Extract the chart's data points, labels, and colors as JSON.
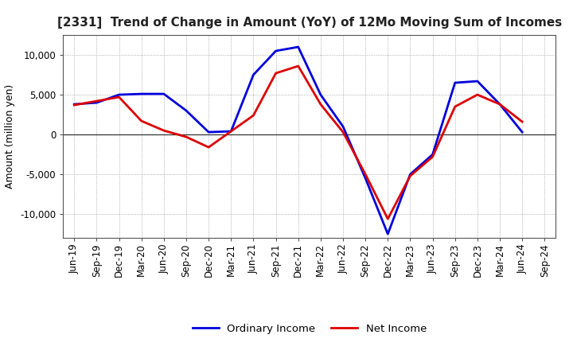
{
  "title": "[2331]  Trend of Change in Amount (YoY) of 12Mo Moving Sum of Incomes",
  "ylabel": "Amount (million yen)",
  "x_labels": [
    "Jun-19",
    "Sep-19",
    "Dec-19",
    "Mar-20",
    "Jun-20",
    "Sep-20",
    "Dec-20",
    "Mar-21",
    "Jun-21",
    "Sep-21",
    "Dec-21",
    "Mar-22",
    "Jun-22",
    "Sep-22",
    "Dec-22",
    "Mar-23",
    "Jun-23",
    "Sep-23",
    "Dec-23",
    "Mar-24",
    "Jun-24",
    "Sep-24"
  ],
  "ordinary_income": [
    3800,
    4000,
    5000,
    5100,
    5100,
    3000,
    300,
    400,
    7500,
    10500,
    11000,
    5000,
    1000,
    -5500,
    -12500,
    -5000,
    -2500,
    6500,
    6700,
    3800,
    300,
    null
  ],
  "net_income": [
    3700,
    4200,
    4700,
    1700,
    500,
    -300,
    -1600,
    400,
    2400,
    7700,
    8600,
    3800,
    300,
    -5000,
    -10600,
    -5200,
    -2800,
    3500,
    5000,
    3800,
    1600,
    null
  ],
  "ordinary_color": "#0000dd",
  "net_color": "#dd0000",
  "ylim": [
    -13000,
    12500
  ],
  "yticks": [
    -10000,
    -5000,
    0,
    5000,
    10000
  ],
  "bg_color": "#ffffff",
  "grid_color": "#999999",
  "title_fontsize": 11,
  "tick_fontsize": 8.5,
  "ylabel_fontsize": 9
}
